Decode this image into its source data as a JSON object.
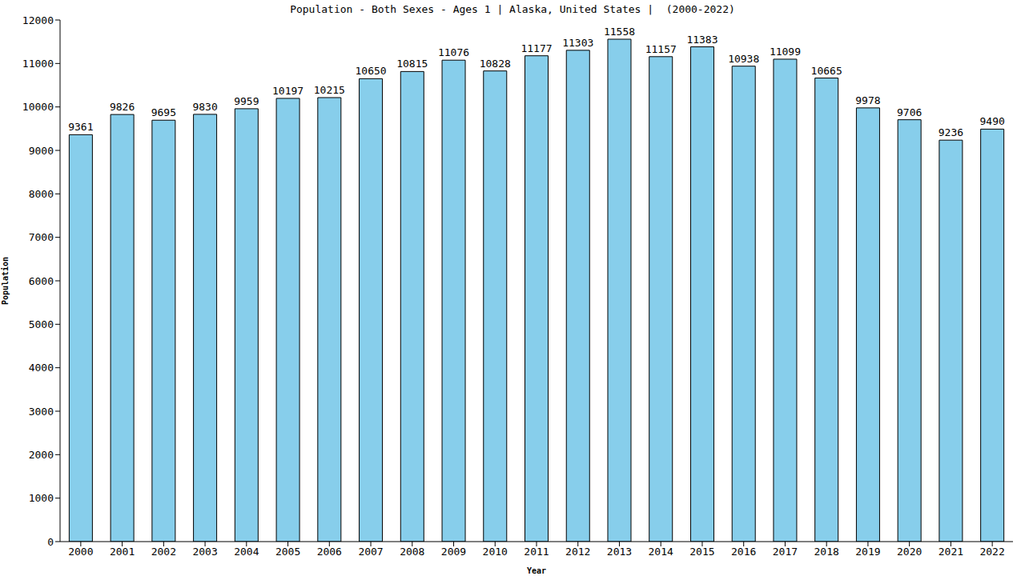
{
  "chart_data": {
    "type": "bar",
    "title": "Population - Both Sexes - Ages 1 | Alaska, United States |  (2000-2022)",
    "x_label": "Year",
    "y_label": "Population",
    "categories": [
      "2000",
      "2001",
      "2002",
      "2003",
      "2004",
      "2005",
      "2006",
      "2007",
      "2008",
      "2009",
      "2010",
      "2011",
      "2012",
      "2013",
      "2014",
      "2015",
      "2016",
      "2017",
      "2018",
      "2019",
      "2020",
      "2021",
      "2022"
    ],
    "values": [
      9361,
      9826,
      9695,
      9830,
      9959,
      10197,
      10215,
      10650,
      10815,
      11076,
      10828,
      11177,
      11303,
      11558,
      11157,
      11383,
      10938,
      11099,
      10665,
      9978,
      9706,
      9236,
      9490
    ],
    "color": "#87ceeb",
    "ylim": [
      0,
      12000
    ],
    "yticks": [
      0,
      1000,
      2000,
      3000,
      4000,
      5000,
      6000,
      7000,
      8000,
      9000,
      10000,
      11000,
      12000
    ],
    "grid": false,
    "data_labels": true
  }
}
